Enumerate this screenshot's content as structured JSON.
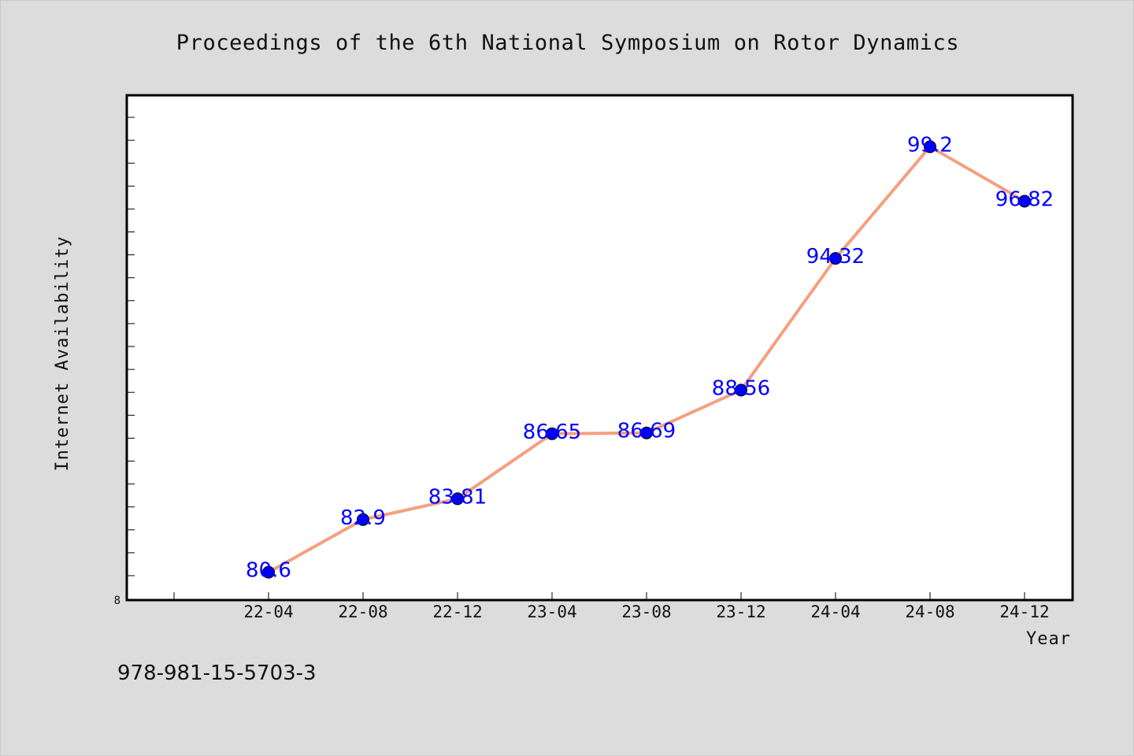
{
  "colors": {
    "background": "#dcdcdc",
    "plot_background": "#ffffff",
    "line": "#f4a07f",
    "marker": "#0000ff",
    "data_label": "#0000ff",
    "text": "#111111"
  },
  "footer": {
    "isbn": "978-981-15-5703-3"
  },
  "chart_data": {
    "type": "line",
    "title": "Proceedings of the 6th National Symposium on Rotor Dynamics",
    "xlabel": "Year",
    "ylabel": "Internet Availability",
    "y_min_label": "8",
    "categories": [
      "22-04",
      "22-08",
      "22-12",
      "23-04",
      "23-08",
      "23-12",
      "24-04",
      "24-08",
      "24-12"
    ],
    "series": [
      {
        "values": [
          80.6,
          82.9,
          83.81,
          86.65,
          86.69,
          88.56,
          94.32,
          99.2,
          96.82
        ],
        "labels": [
          "80.6",
          "82.9",
          "83.81",
          "86.65",
          "86.69",
          "88.56",
          "94.32",
          "99.2",
          "96.82"
        ]
      }
    ],
    "ylim": [
      80,
      102
    ],
    "grid": false,
    "legend": "none",
    "markers": true,
    "data_labels": true
  }
}
